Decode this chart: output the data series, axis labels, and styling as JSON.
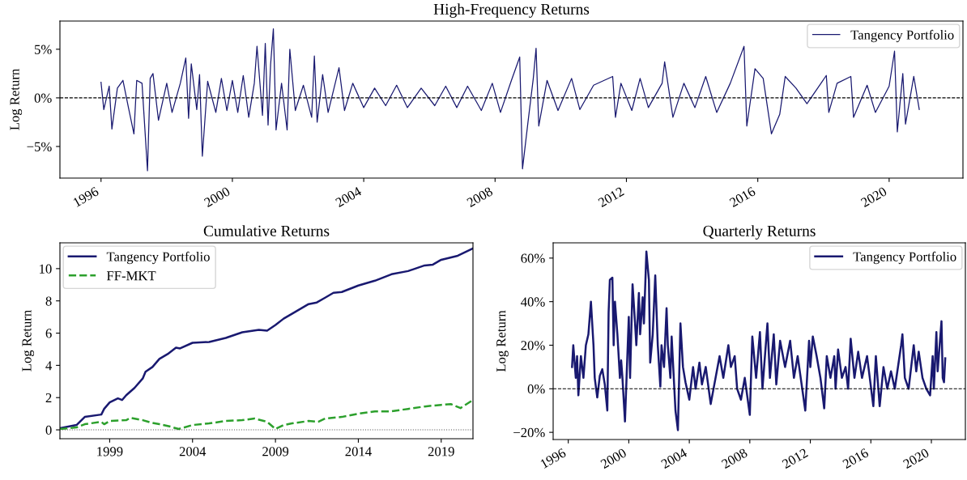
{
  "chart_data": [
    {
      "type": "line",
      "title": "High-Frequency Returns",
      "ylabel": "Log Return",
      "legend": "top right",
      "grid": false,
      "line_style": "solid",
      "marker": "none",
      "xlim": [
        "1994-10",
        "2022-04"
      ],
      "xticks": [
        "1996",
        "2000",
        "2004",
        "2008",
        "2012",
        "2016",
        "2020"
      ],
      "ylim": [
        -8.25,
        7.9
      ],
      "yticks": [
        {
          "value": -5,
          "label": "−5%"
        },
        {
          "value": 0,
          "label": "0%"
        },
        {
          "value": 5,
          "label": "5%"
        }
      ],
      "ref_lines": [
        {
          "axis": "y",
          "value": 0,
          "color": "#000000",
          "line_style": "dashed"
        }
      ],
      "series": [
        {
          "name": "Tangency Portfolio",
          "color": "#191970",
          "x": [
            "1996-01",
            "1996-02",
            "1996-04",
            "1996-05",
            "1996-07",
            "1996-09",
            "1996-11",
            "1997-01",
            "1997-02",
            "1997-04",
            "1997-06",
            "1997-07",
            "1997-08",
            "1997-10",
            "1998-01",
            "1998-03",
            "1998-06",
            "1998-08",
            "1998-09",
            "1998-10",
            "1998-12",
            "1999-01",
            "1999-02",
            "1999-04",
            "1999-07",
            "1999-09",
            "1999-11",
            "2000-01",
            "2000-03",
            "2000-05",
            "2000-07",
            "2000-09",
            "2000-10",
            "2000-12",
            "2001-01",
            "2001-02",
            "2001-03",
            "2001-04",
            "2001-05",
            "2001-07",
            "2001-09",
            "2001-10",
            "2001-12",
            "2002-03",
            "2002-06",
            "2002-07",
            "2002-08",
            "2002-10",
            "2002-12",
            "2003-04",
            "2003-06",
            "2003-09",
            "2004-01",
            "2004-05",
            "2004-09",
            "2005-01",
            "2005-05",
            "2005-10",
            "2006-03",
            "2006-07",
            "2006-11",
            "2007-03",
            "2007-08",
            "2007-12",
            "2008-03",
            "2008-07",
            "2008-10",
            "2008-11",
            "2009-01",
            "2009-03",
            "2009-04",
            "2009-05",
            "2009-08",
            "2009-12",
            "2010-05",
            "2010-08",
            "2011-01",
            "2011-08",
            "2011-09",
            "2011-11",
            "2012-03",
            "2012-06",
            "2012-09",
            "2013-02",
            "2013-03",
            "2013-06",
            "2013-10",
            "2014-02",
            "2014-06",
            "2014-10",
            "2015-03",
            "2015-08",
            "2015-09",
            "2015-12",
            "2016-03",
            "2016-06",
            "2016-09",
            "2016-11",
            "2017-03",
            "2017-07",
            "2018-02",
            "2018-03",
            "2018-06",
            "2018-11",
            "2018-12",
            "2019-05",
            "2019-08",
            "2020-01",
            "2020-03",
            "2020-04",
            "2020-06",
            "2020-07",
            "2020-10",
            "2020-12"
          ],
          "values": [
            1.6,
            -1.2,
            1.2,
            -3.2,
            1.0,
            1.8,
            -1.0,
            -3.7,
            1.8,
            1.5,
            -7.5,
            2.0,
            2.5,
            -2.3,
            1.5,
            -1.5,
            1.5,
            4.1,
            -2.1,
            3.5,
            -1.2,
            2.4,
            -6.0,
            1.7,
            -1.5,
            2.0,
            -1.3,
            1.8,
            -1.5,
            2.3,
            -2.0,
            1.5,
            5.3,
            -1.8,
            5.6,
            -2.8,
            3.4,
            7.1,
            -3.3,
            1.5,
            -3.3,
            5.0,
            -1.3,
            1.3,
            -2.0,
            4.3,
            -2.5,
            2.4,
            -1.5,
            3.1,
            -1.3,
            1.5,
            -1.0,
            1.0,
            -0.8,
            1.3,
            -1.0,
            1.0,
            -0.8,
            1.2,
            -1.0,
            1.2,
            -1.3,
            1.5,
            -1.5,
            1.8,
            4.2,
            -7.3,
            -2.5,
            2.0,
            5.1,
            -2.9,
            1.8,
            -1.3,
            2.0,
            -1.2,
            1.3,
            2.2,
            -2.0,
            1.5,
            -1.3,
            2.0,
            -1.0,
            1.5,
            3.7,
            -2.0,
            1.5,
            -1.0,
            2.2,
            -1.5,
            1.5,
            5.3,
            -2.9,
            3.0,
            2.0,
            -3.7,
            -1.7,
            2.2,
            1.0,
            -0.6,
            2.3,
            -1.5,
            1.5,
            2.2,
            -2.0,
            1.3,
            -1.5,
            1.2,
            4.8,
            -3.5,
            2.5,
            -2.7,
            2.2,
            -1.2
          ]
        }
      ]
    },
    {
      "type": "line",
      "title": "Cumulative Returns",
      "ylabel": "Log Return",
      "legend": "top left",
      "grid": false,
      "xlim": [
        "1996-01",
        "2020-12"
      ],
      "xticks": [
        "1999",
        "2004",
        "2009",
        "2014",
        "2019"
      ],
      "ylim": [
        -0.55,
        11.6
      ],
      "yticks": [
        0,
        2,
        4,
        6,
        8,
        10
      ],
      "ref_lines": [
        {
          "axis": "y",
          "value": 0,
          "color": "#555555",
          "line_style": "dotted"
        }
      ],
      "series": [
        {
          "name": "Tangency Portfolio",
          "color": "#191970",
          "line_style": "solid",
          "x": [
            "1996-01",
            "1997-01",
            "1997-07",
            "1998-07",
            "1998-09",
            "1999-01",
            "1999-07",
            "1999-10",
            "2000-01",
            "2000-07",
            "2001-01",
            "2001-03",
            "2001-08",
            "2002-01",
            "2002-07",
            "2003-01",
            "2003-04",
            "2004-01",
            "2005-01",
            "2006-01",
            "2007-01",
            "2008-01",
            "2008-07",
            "2009-01",
            "2009-07",
            "2010-01",
            "2011-01",
            "2011-07",
            "2012-01",
            "2012-07",
            "2013-01",
            "2014-01",
            "2015-01",
            "2016-01",
            "2017-01",
            "2018-01",
            "2018-07",
            "2019-01",
            "2020-01",
            "2020-12"
          ],
          "values": [
            0.1,
            0.3,
            0.8,
            0.95,
            1.3,
            1.7,
            1.95,
            1.85,
            2.15,
            2.6,
            3.2,
            3.6,
            3.9,
            4.4,
            4.7,
            5.1,
            5.05,
            5.4,
            5.45,
            5.7,
            6.05,
            6.2,
            6.15,
            6.5,
            6.9,
            7.2,
            7.8,
            7.9,
            8.2,
            8.5,
            8.55,
            8.95,
            9.25,
            9.65,
            9.85,
            10.2,
            10.25,
            10.55,
            10.8,
            11.25
          ]
        },
        {
          "name": "FF-MKT",
          "color": "#2ca02c",
          "line_style": "dashed",
          "x": [
            "1996-01",
            "1997-01",
            "1997-07",
            "1998-07",
            "1998-09",
            "1999-01",
            "2000-01",
            "2000-04",
            "2001-01",
            "2001-07",
            "2002-01",
            "2002-09",
            "2003-03",
            "2004-01",
            "2005-01",
            "2006-01",
            "2007-01",
            "2007-10",
            "2008-07",
            "2009-01",
            "2009-07",
            "2010-01",
            "2011-01",
            "2011-08",
            "2012-01",
            "2013-01",
            "2014-01",
            "2015-01",
            "2016-01",
            "2017-01",
            "2018-01",
            "2019-01",
            "2019-08",
            "2020-03",
            "2020-12"
          ],
          "values": [
            0.05,
            0.15,
            0.35,
            0.5,
            0.35,
            0.55,
            0.6,
            0.75,
            0.6,
            0.45,
            0.35,
            0.2,
            0.05,
            0.3,
            0.4,
            0.55,
            0.6,
            0.7,
            0.5,
            0.05,
            0.3,
            0.4,
            0.55,
            0.5,
            0.7,
            0.8,
            1.0,
            1.15,
            1.15,
            1.3,
            1.45,
            1.55,
            1.6,
            1.35,
            1.85
          ]
        }
      ]
    },
    {
      "type": "line",
      "title": "Quarterly Returns",
      "ylabel": "Log Return",
      "legend": "top right",
      "grid": false,
      "line_style": "solid",
      "xlim": [
        "1995-01",
        "2022-04"
      ],
      "xticks": [
        "1996",
        "2000",
        "2004",
        "2008",
        "2012",
        "2016",
        "2020"
      ],
      "ylim": [
        -23.3,
        67
      ],
      "yticks": [
        {
          "value": -20,
          "label": "−20%"
        },
        {
          "value": 0,
          "label": "0%"
        },
        {
          "value": 20,
          "label": "20%"
        },
        {
          "value": 40,
          "label": "40%"
        },
        {
          "value": 60,
          "label": "60%"
        }
      ],
      "ref_lines": [
        {
          "axis": "y",
          "value": 0,
          "color": "#000000",
          "line_style": "dashed"
        }
      ],
      "series": [
        {
          "name": "Tangency Portfolio",
          "color": "#191970",
          "x": [
            "1996-04",
            "1996-05",
            "1996-07",
            "1996-08",
            "1996-09",
            "1996-11",
            "1997-01",
            "1997-03",
            "1997-05",
            "1997-07",
            "1997-09",
            "1997-10",
            "1997-12",
            "1998-02",
            "1998-04",
            "1998-06",
            "1998-08",
            "1998-09",
            "1998-10",
            "1998-12",
            "1999-01",
            "1999-02",
            "1999-04",
            "1999-06",
            "1999-07",
            "1999-08",
            "1999-10",
            "2000-01",
            "2000-02",
            "2000-04",
            "2000-06",
            "2000-07",
            "2000-09",
            "2000-10",
            "2000-12",
            "2001-01",
            "2001-03",
            "2001-05",
            "2001-06",
            "2001-08",
            "2001-10",
            "2001-12",
            "2002-02",
            "2002-03",
            "2002-05",
            "2002-07",
            "2002-08",
            "2002-10",
            "2002-11",
            "2003-02",
            "2003-04",
            "2003-06",
            "2003-08",
            "2003-10",
            "2004-01",
            "2004-04",
            "2004-06",
            "2004-09",
            "2004-11",
            "2005-02",
            "2005-06",
            "2006-01",
            "2006-04",
            "2006-08",
            "2006-10",
            "2007-01",
            "2007-03",
            "2007-06",
            "2007-09",
            "2008-01",
            "2008-03",
            "2008-06",
            "2008-09",
            "2008-11",
            "2009-03",
            "2009-05",
            "2009-08",
            "2009-10",
            "2010-01",
            "2010-05",
            "2010-09",
            "2010-12",
            "2011-03",
            "2011-09",
            "2011-12",
            "2012-01",
            "2012-03",
            "2012-06",
            "2012-09",
            "2012-12",
            "2013-02",
            "2013-05",
            "2013-08",
            "2013-09",
            "2013-11",
            "2014-02",
            "2014-05",
            "2014-07",
            "2014-09",
            "2014-12",
            "2015-03",
            "2015-06",
            "2015-10",
            "2016-03",
            "2016-05",
            "2016-08",
            "2016-11",
            "2017-02",
            "2017-05",
            "2017-08",
            "2018-01",
            "2018-02",
            "2018-04",
            "2018-07",
            "2018-11",
            "2019-01",
            "2019-03",
            "2019-06",
            "2019-09",
            "2019-12",
            "2020-02",
            "2020-03",
            "2020-05",
            "2020-06",
            "2020-09",
            "2020-10",
            "2020-11",
            "2020-12"
          ],
          "values": [
            10,
            20,
            5,
            15,
            -3,
            15,
            5,
            20,
            25,
            40,
            20,
            5,
            -4,
            6,
            9,
            2,
            -10,
            35,
            50,
            51,
            20,
            40,
            25,
            5,
            13,
            5,
            -15,
            33,
            5,
            48,
            30,
            20,
            44,
            25,
            42,
            30,
            63,
            50,
            12,
            25,
            52,
            20,
            1,
            20,
            10,
            37,
            20,
            5,
            24,
            -10,
            -19,
            30,
            10,
            3,
            -5,
            10,
            0,
            12,
            2,
            10,
            -7,
            15,
            5,
            20,
            10,
            15,
            0,
            -5,
            5,
            -12,
            24,
            5,
            26,
            0,
            30,
            5,
            25,
            2,
            22,
            10,
            22,
            5,
            15,
            -10,
            22,
            10,
            24,
            15,
            5,
            -9,
            15,
            5,
            15,
            0,
            18,
            5,
            10,
            0,
            23,
            5,
            17,
            5,
            15,
            -8,
            15,
            -8,
            10,
            0,
            8,
            0,
            20,
            25,
            5,
            0,
            20,
            8,
            17,
            5,
            0,
            -3,
            15,
            0,
            26,
            8,
            31,
            5,
            3,
            14
          ]
        }
      ]
    }
  ]
}
